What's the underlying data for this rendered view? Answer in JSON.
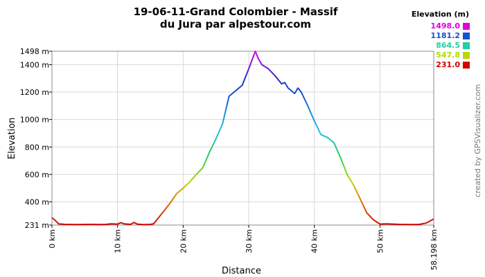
{
  "title_line1": "19-06-11-Grand Colombier - Massif",
  "title_line2": "du Jura par alpestour.com",
  "credit": "created by GPSVisualizer.com",
  "legend": {
    "title": "Elevation (m)",
    "items": [
      {
        "label": "1498.0",
        "color": "#e000e0"
      },
      {
        "label": "1181.2",
        "color": "#1450d0"
      },
      {
        "label": "864.5",
        "color": "#20d0a0"
      },
      {
        "label": "547.8",
        "color": "#b8d800"
      },
      {
        "label": "231.0",
        "color": "#d00000"
      }
    ]
  },
  "chart_data": {
    "type": "line",
    "xlabel": "Distance",
    "ylabel": "Elevation",
    "xlim": [
      0,
      58.198
    ],
    "ylim": [
      231,
      1498
    ],
    "x_ticks": [
      {
        "value": 0,
        "label": "0 km"
      },
      {
        "value": 10,
        "label": "10 km"
      },
      {
        "value": 20,
        "label": "20 km"
      },
      {
        "value": 30,
        "label": "30 km"
      },
      {
        "value": 40,
        "label": "40 km"
      },
      {
        "value": 50,
        "label": "50 km"
      },
      {
        "value": 58.198,
        "label": "58.198 km"
      }
    ],
    "y_ticks": [
      {
        "value": 231,
        "label": "231 m"
      },
      {
        "value": 400,
        "label": "400 m"
      },
      {
        "value": 600,
        "label": "600 m"
      },
      {
        "value": 800,
        "label": "800 m"
      },
      {
        "value": 1000,
        "label": "1000 m"
      },
      {
        "value": 1200,
        "label": "1200 m"
      },
      {
        "value": 1400,
        "label": "1400 m"
      },
      {
        "value": 1498,
        "label": "1498 m"
      }
    ],
    "grid": true,
    "series": [
      {
        "x": [
          0,
          0.5,
          1,
          2,
          4,
          6,
          8,
          9,
          10,
          10.5,
          11,
          12,
          12.5,
          13,
          14,
          15,
          15.5,
          16,
          17,
          18,
          19,
          20,
          21,
          22,
          23,
          24,
          25,
          26,
          27,
          28,
          29,
          30,
          31,
          31.5,
          32,
          33,
          34,
          35,
          35.5,
          36,
          37,
          37.5,
          38,
          39,
          40,
          41,
          42,
          43,
          44,
          45,
          46,
          47,
          48,
          49,
          50,
          51,
          52,
          53,
          55,
          56,
          57,
          58.198
        ],
        "y": [
          285,
          265,
          240,
          236,
          235,
          236,
          235,
          240,
          238,
          248,
          240,
          236,
          250,
          238,
          234,
          236,
          240,
          270,
          330,
          390,
          460,
          500,
          545,
          600,
          650,
          760,
          860,
          970,
          1170,
          1210,
          1250,
          1370,
          1498,
          1440,
          1400,
          1370,
          1320,
          1260,
          1270,
          1230,
          1190,
          1230,
          1200,
          1100,
          990,
          890,
          870,
          830,
          720,
          600,
          520,
          420,
          320,
          270,
          238,
          240,
          238,
          236,
          235,
          236,
          245,
          275
        ]
      }
    ]
  }
}
